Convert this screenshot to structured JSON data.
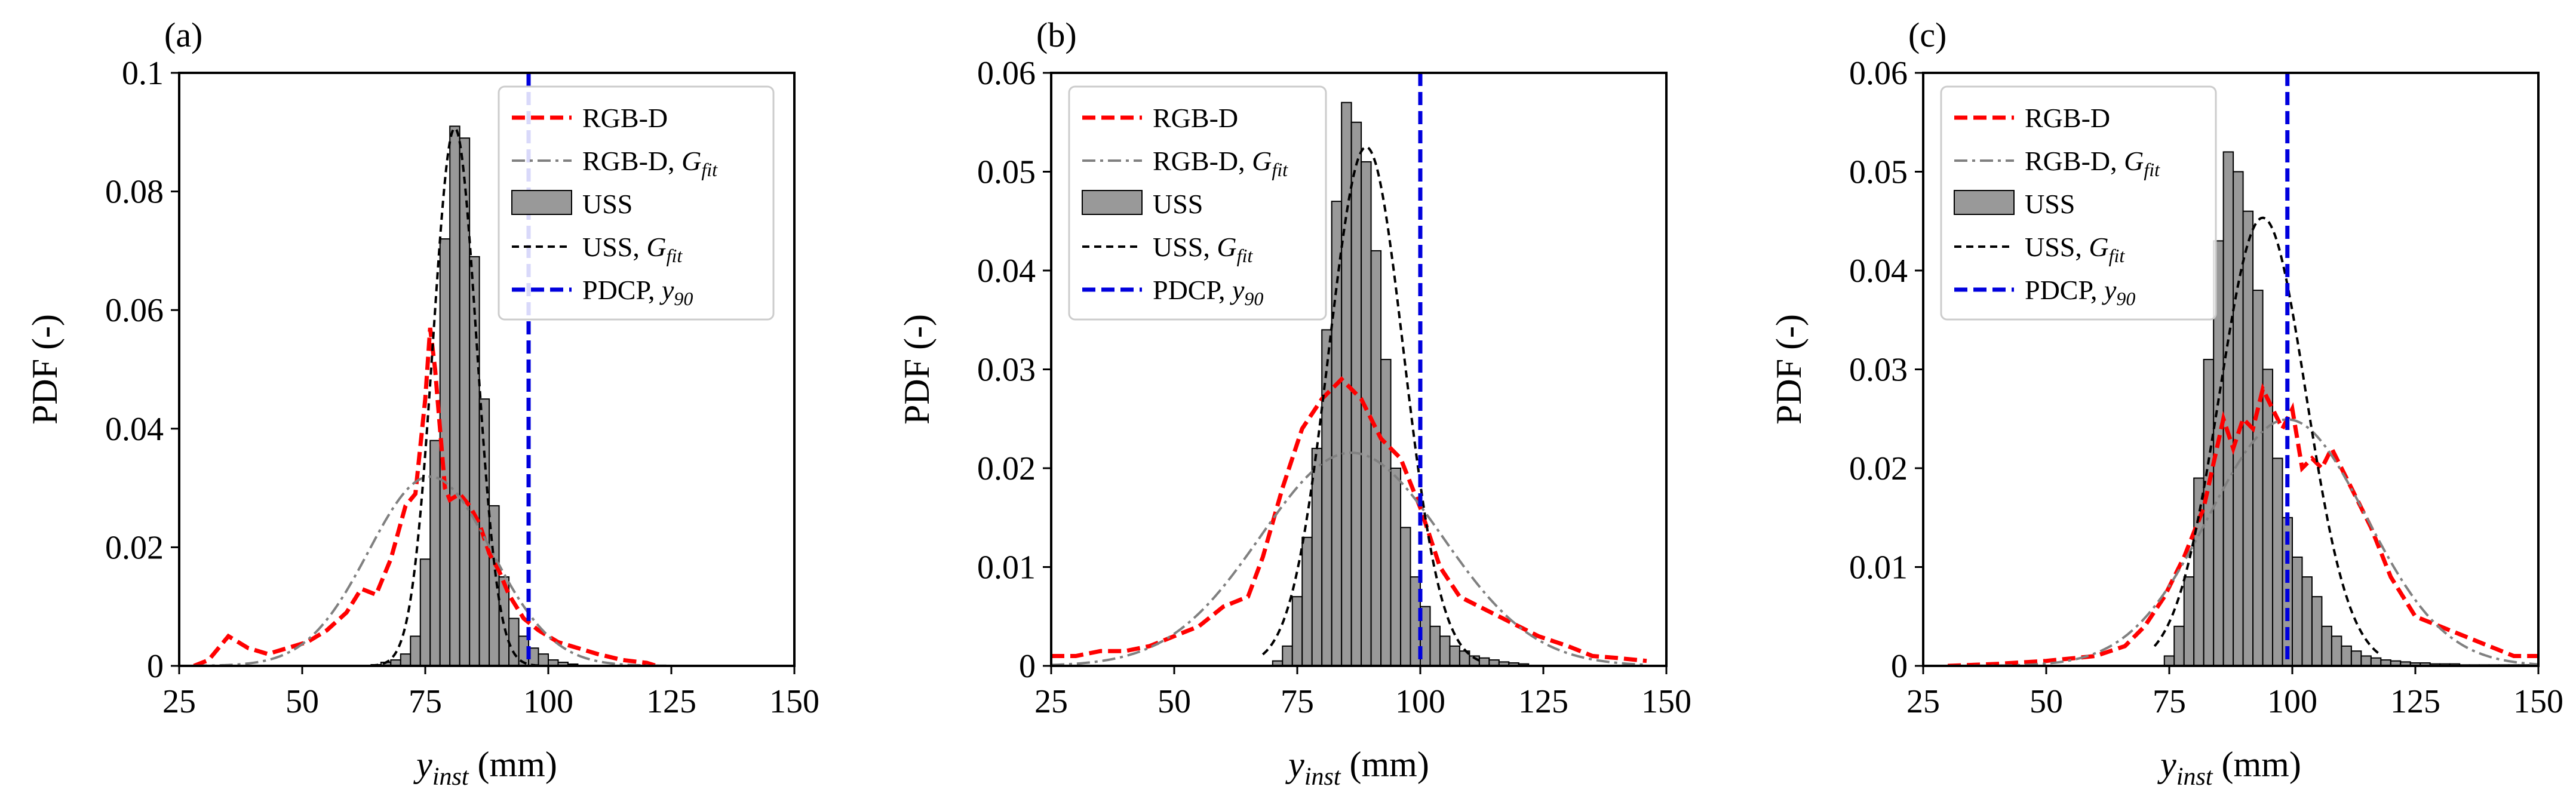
{
  "chart_data": [
    {
      "type": "bar",
      "panel_label": "(a)",
      "ylabel": "PDF (-)",
      "xlabel": {
        "main": "y",
        "sub": "inst",
        "unit": " (mm)"
      },
      "xlim": [
        25,
        150
      ],
      "ylim": [
        0,
        0.1
      ],
      "xticks": [
        25,
        50,
        75,
        100,
        125,
        150
      ],
      "yticks": [
        0,
        0.02,
        0.04,
        0.06,
        0.08,
        0.1
      ],
      "ytick_labels": [
        "0",
        "0.02",
        "0.04",
        "0.06",
        "0.08",
        "0.1"
      ],
      "legend_position": "top-right",
      "legend": [
        {
          "label": "RGB-D",
          "sub": ""
        },
        {
          "label": "RGB-D, ",
          "sub": "G",
          "subsub": "fit"
        },
        {
          "label": "USS",
          "sub": ""
        },
        {
          "label": "USS, ",
          "sub": "G",
          "subsub": "fit"
        },
        {
          "label": "PDCP, ",
          "sub": "y",
          "subsub": "90"
        }
      ],
      "hist": {
        "bin_width": 2,
        "edges_start": 64,
        "values": [
          0.0002,
          0.0006,
          0.001,
          0.002,
          0.005,
          0.018,
          0.038,
          0.072,
          0.091,
          0.089,
          0.069,
          0.045,
          0.027,
          0.015,
          0.008,
          0.005,
          0.003,
          0.002,
          0.001,
          0.0006,
          0.0003
        ]
      },
      "series": [
        {
          "name": "RGB-D",
          "x": [
            28,
            31,
            35,
            39,
            43,
            47,
            51,
            55,
            59,
            62,
            65,
            68,
            71,
            73,
            75,
            76,
            77,
            78,
            79,
            80,
            82,
            84,
            86,
            88,
            90,
            92,
            95,
            98,
            102,
            106,
            110,
            115,
            120,
            122
          ],
          "y": [
            0,
            0.001,
            0.005,
            0.003,
            0.002,
            0.003,
            0.004,
            0.006,
            0.009,
            0.013,
            0.012,
            0.018,
            0.027,
            0.029,
            0.045,
            0.057,
            0.05,
            0.04,
            0.03,
            0.028,
            0.029,
            0.027,
            0.024,
            0.019,
            0.016,
            0.012,
            0.008,
            0.006,
            0.004,
            0.003,
            0.002,
            0.001,
            0.0005,
            0
          ]
        },
        {
          "name": "RGB-D, Gfit",
          "gauss": {
            "mean": 76,
            "sd": 12.5,
            "xmin": 28,
            "xmax": 125
          }
        },
        {
          "name": "USS, Gfit",
          "gauss": {
            "mean": 81,
            "sd": 4.4,
            "xmin": 64,
            "xmax": 98
          }
        }
      ],
      "vline_x": 96
    },
    {
      "type": "bar",
      "panel_label": "(b)",
      "ylabel": "PDF (-)",
      "xlabel": {
        "main": "y",
        "sub": "inst",
        "unit": " (mm)"
      },
      "xlim": [
        25,
        150
      ],
      "ylim": [
        0,
        0.06
      ],
      "xticks": [
        25,
        50,
        75,
        100,
        125,
        150
      ],
      "yticks": [
        0,
        0.01,
        0.02,
        0.03,
        0.04,
        0.05,
        0.06
      ],
      "ytick_labels": [
        "0",
        "0.01",
        "0.02",
        "0.03",
        "0.04",
        "0.05",
        "0.06"
      ],
      "legend_position": "top-left",
      "legend": [
        {
          "label": "RGB-D",
          "sub": ""
        },
        {
          "label": "RGB-D, ",
          "sub": "G",
          "subsub": "fit"
        },
        {
          "label": "USS",
          "sub": ""
        },
        {
          "label": "USS, ",
          "sub": "G",
          "subsub": "fit"
        },
        {
          "label": "PDCP, ",
          "sub": "y",
          "subsub": "90"
        }
      ],
      "hist": {
        "bin_width": 2,
        "edges_start": 70,
        "values": [
          0.0005,
          0.002,
          0.007,
          0.013,
          0.022,
          0.034,
          0.047,
          0.057,
          0.055,
          0.051,
          0.042,
          0.031,
          0.02,
          0.014,
          0.009,
          0.006,
          0.004,
          0.003,
          0.002,
          0.0015,
          0.001,
          0.0008,
          0.0006,
          0.0004,
          0.0003,
          0.0002
        ]
      },
      "series": [
        {
          "name": "RGB-D",
          "x": [
            25,
            30,
            35,
            40,
            45,
            50,
            55,
            60,
            65,
            68,
            72,
            76,
            80,
            84,
            88,
            92,
            96,
            100,
            104,
            108,
            112,
            116,
            120,
            124,
            130,
            135,
            140,
            146
          ],
          "y": [
            0.001,
            0.001,
            0.0015,
            0.0015,
            0.002,
            0.003,
            0.004,
            0.006,
            0.007,
            0.011,
            0.018,
            0.024,
            0.027,
            0.029,
            0.027,
            0.023,
            0.021,
            0.016,
            0.01,
            0.007,
            0.006,
            0.005,
            0.004,
            0.003,
            0.002,
            0.001,
            0.0008,
            0.0005
          ]
        },
        {
          "name": "RGB-D, Gfit",
          "gauss": {
            "mean": 86,
            "sd": 18.5,
            "xmin": 25,
            "xmax": 146
          }
        },
        {
          "name": "USS, Gfit",
          "gauss": {
            "mean": 89,
            "sd": 7.6,
            "xmin": 68,
            "xmax": 112
          }
        }
      ],
      "vline_x": 100
    },
    {
      "type": "bar",
      "panel_label": "(c)",
      "ylabel": "PDF (-)",
      "xlabel": {
        "main": "y",
        "sub": "inst",
        "unit": " (mm)"
      },
      "xlim": [
        25,
        150
      ],
      "ylim": [
        0,
        0.06
      ],
      "xticks": [
        25,
        50,
        75,
        100,
        125,
        150
      ],
      "yticks": [
        0,
        0.01,
        0.02,
        0.03,
        0.04,
        0.05,
        0.06
      ],
      "ytick_labels": [
        "0",
        "0.01",
        "0.02",
        "0.03",
        "0.04",
        "0.05",
        "0.06"
      ],
      "legend_position": "top-left",
      "legend": [
        {
          "label": "RGB-D",
          "sub": ""
        },
        {
          "label": "RGB-D, ",
          "sub": "G",
          "subsub": "fit"
        },
        {
          "label": "USS",
          "sub": ""
        },
        {
          "label": "USS, ",
          "sub": "G",
          "subsub": "fit"
        },
        {
          "label": "PDCP, ",
          "sub": "y",
          "subsub": "90"
        }
      ],
      "hist": {
        "bin_width": 2,
        "edges_start": 74,
        "values": [
          0.001,
          0.004,
          0.009,
          0.019,
          0.031,
          0.043,
          0.052,
          0.05,
          0.046,
          0.038,
          0.03,
          0.021,
          0.015,
          0.011,
          0.009,
          0.007,
          0.004,
          0.003,
          0.002,
          0.0015,
          0.001,
          0.0008,
          0.0006,
          0.0005,
          0.0004,
          0.0003,
          0.0003,
          0.0002,
          0.0002,
          0.0002,
          0.0001,
          0.0001,
          0.0001,
          0.0001,
          0.0001,
          0.0001,
          0.0001,
          0.0001
        ]
      },
      "series": [
        {
          "name": "RGB-D",
          "x": [
            30,
            40,
            50,
            60,
            66,
            70,
            74,
            78,
            82,
            86,
            88,
            90,
            92,
            94,
            96,
            98,
            100,
            102,
            104,
            106,
            108,
            112,
            116,
            120,
            125,
            130,
            135,
            140,
            145,
            150
          ],
          "y": [
            0,
            0.0002,
            0.0005,
            0.001,
            0.002,
            0.004,
            0.007,
            0.011,
            0.016,
            0.025,
            0.022,
            0.025,
            0.024,
            0.028,
            0.026,
            0.024,
            0.026,
            0.02,
            0.021,
            0.02,
            0.022,
            0.018,
            0.014,
            0.009,
            0.005,
            0.004,
            0.003,
            0.002,
            0.001,
            0.001
          ]
        },
        {
          "name": "RGB-D, Gfit",
          "gauss": {
            "mean": 99,
            "sd": 16.0,
            "xmin": 30,
            "xmax": 150
          }
        },
        {
          "name": "USS, Gfit",
          "gauss": {
            "mean": 94,
            "sd": 8.8,
            "xmin": 72,
            "xmax": 118
          }
        }
      ],
      "vline_x": 99
    }
  ],
  "colors": {
    "rgbd": "#ff0000",
    "rgbd_fit": "#808080",
    "uss_bar": "#999999",
    "uss_fit": "#000000",
    "pdcp": "#0000dd"
  }
}
